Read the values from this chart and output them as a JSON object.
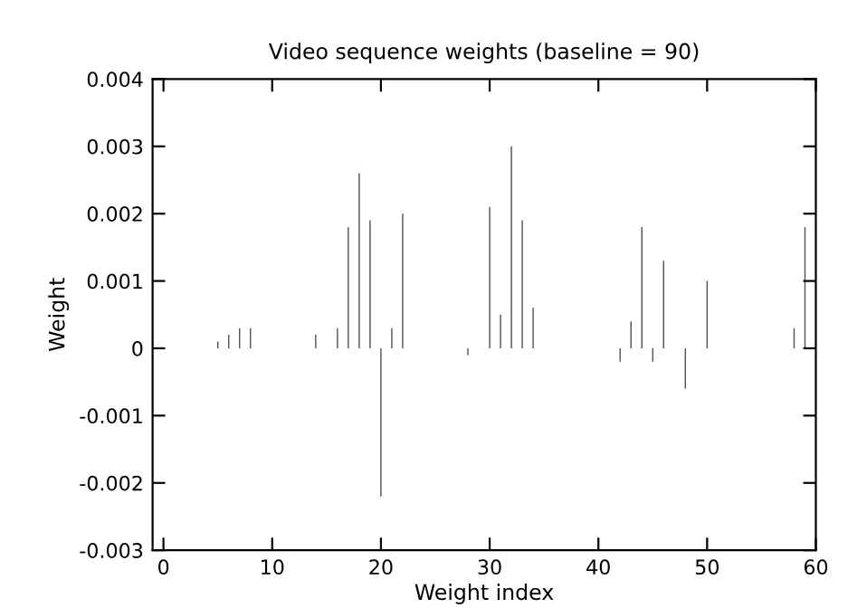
{
  "chart_data": {
    "type": "bar",
    "title": "Video sequence weights (baseline = 90)",
    "xlabel": "Weight index",
    "ylabel": "Weight",
    "x": [
      0,
      1,
      2,
      3,
      4,
      5,
      6,
      7,
      8,
      9,
      10,
      11,
      12,
      13,
      14,
      15,
      16,
      17,
      18,
      19,
      20,
      21,
      22,
      23,
      24,
      25,
      26,
      27,
      28,
      29,
      30,
      31,
      32,
      33,
      34,
      35,
      36,
      37,
      38,
      39,
      40,
      41,
      42,
      43,
      44,
      45,
      46,
      47,
      48,
      49,
      50,
      51,
      52,
      53,
      54,
      55,
      56,
      57,
      58,
      59
    ],
    "values": [
      0,
      0,
      0,
      null,
      null,
      0.0001,
      0.0002,
      0.0003,
      0.0003,
      null,
      null,
      null,
      null,
      null,
      0.0002,
      null,
      0.0003,
      0.0018,
      0.0026,
      0.0019,
      -0.0022,
      0.0003,
      0.002,
      0,
      0,
      0,
      0,
      null,
      -0.0001,
      null,
      0.0021,
      0.0005,
      0.003,
      0.0019,
      0.0006,
      0,
      0,
      0,
      0,
      0,
      0,
      0,
      -0.0002,
      0.0004,
      0.0018,
      -0.0002,
      0.0013,
      0,
      -0.0006,
      0,
      0.001,
      0,
      0,
      0,
      0,
      0,
      0,
      0,
      0.0003,
      0.0018
    ],
    "color": "#555555",
    "xlim": [
      -1,
      60
    ],
    "xticks": [
      0,
      10,
      20,
      30,
      40,
      50,
      60
    ],
    "ylim": [
      -0.003,
      0.004
    ],
    "yticks": [
      {
        "value": -0.003,
        "label": "-0.003"
      },
      {
        "value": -0.002,
        "label": "-0.002"
      },
      {
        "value": -0.001,
        "label": "-0.001"
      },
      0,
      {
        "value": 0.001,
        "label": "0.001"
      },
      {
        "value": 0.002,
        "label": "0.002"
      },
      {
        "value": 0.003,
        "label": "0.003"
      },
      {
        "value": 0.004,
        "label": "0.004"
      }
    ],
    "grid": false,
    "legend": false
  }
}
